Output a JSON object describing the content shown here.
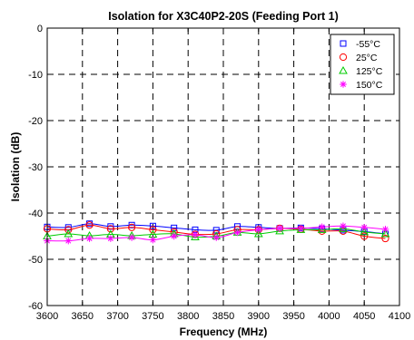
{
  "chart_data": {
    "type": "line",
    "title": "Isolation for X3C40P2-20S (Feeding Port 1)",
    "xlabel": "Frequency (MHz)",
    "ylabel": "Isolation (dB)",
    "xlim": [
      3600,
      4100
    ],
    "ylim": [
      -60,
      0
    ],
    "xticks": [
      3600,
      3650,
      3700,
      3750,
      3800,
      3850,
      3900,
      3950,
      4000,
      4050,
      4100
    ],
    "yticks": [
      0,
      -10,
      -20,
      -30,
      -40,
      -50,
      -60
    ],
    "grid": true,
    "legend_position": "top-right",
    "x": [
      3600,
      3630,
      3660,
      3690,
      3720,
      3750,
      3780,
      3810,
      3840,
      3870,
      3900,
      3930,
      3960,
      3990,
      4020,
      4050,
      4080
    ],
    "series": [
      {
        "name": "-55°C",
        "color": "#0000ff",
        "marker": "square",
        "values": [
          -43.0,
          -43.1,
          -42.3,
          -42.9,
          -42.6,
          -42.8,
          -43.2,
          -43.6,
          -43.7,
          -42.9,
          -43.1,
          -43.3,
          -43.2,
          -43.4,
          -43.7,
          -44.0,
          -44.5
        ]
      },
      {
        "name": "25°C",
        "color": "#ff0000",
        "marker": "circle",
        "values": [
          -43.4,
          -43.6,
          -42.6,
          -43.4,
          -43.1,
          -43.6,
          -44.1,
          -44.6,
          -44.5,
          -43.6,
          -43.6,
          -43.3,
          -43.5,
          -43.9,
          -43.9,
          -45.0,
          -45.5
        ]
      },
      {
        "name": "125°C",
        "color": "#00cc00",
        "marker": "triangle",
        "values": [
          -45.0,
          -44.5,
          -44.9,
          -44.6,
          -44.9,
          -44.6,
          -44.5,
          -45.2,
          -45.0,
          -44.2,
          -44.5,
          -43.9,
          -43.6,
          -43.6,
          -43.4,
          -44.1,
          -44.5
        ]
      },
      {
        "name": "150°C",
        "color": "#ff00ff",
        "marker": "asterisk",
        "values": [
          -46.0,
          -46.0,
          -45.5,
          -45.5,
          -45.3,
          -45.8,
          -45.0,
          -44.7,
          -45.3,
          -44.2,
          -43.6,
          -43.3,
          -43.3,
          -43.0,
          -42.8,
          -43.1,
          -43.5
        ]
      }
    ]
  }
}
